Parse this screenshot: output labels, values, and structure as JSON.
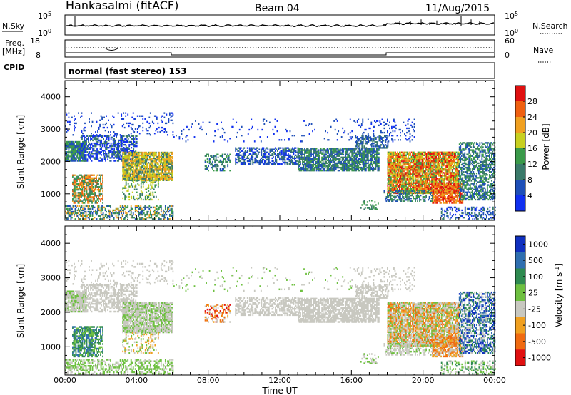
{
  "header": {
    "station": "Hankasalmi (fitACF)",
    "beam": "Beam 04",
    "date": "11/Aug/2015"
  },
  "side_labels": {
    "nsky": "N.Sky",
    "freq_line1": "Freq.",
    "freq_line2": "[MHz]",
    "cpid": "CPID",
    "nsearch": "N.Search",
    "nave": "Nave"
  },
  "noise_panel": {
    "left_ticks": [
      "10^5",
      "10^0"
    ],
    "right_ticks": [
      "10^5",
      "10^0"
    ]
  },
  "freq_panel": {
    "left_ticks": [
      "18",
      "8"
    ],
    "right_ticks": [
      "60",
      "0"
    ]
  },
  "cpid_text": "normal (fast stereo) 153",
  "chart_data": [
    {
      "type": "heatmap",
      "quantity": "Power",
      "ylabel": "Slant Range [km]",
      "xlabel": "Time UT",
      "ylim": [
        180,
        4500
      ],
      "xlim": [
        0,
        24
      ],
      "yticks": [
        1000,
        2000,
        3000,
        4000
      ],
      "xtick_labels": [
        "00:00",
        "04:00",
        "08:00",
        "12:00",
        "16:00",
        "20:00",
        "00:00"
      ],
      "colorbar": {
        "label": "Power [dB]",
        "ticks": [
          4,
          8,
          12,
          16,
          20,
          24,
          28
        ],
        "levels": [
          {
            "from": 0,
            "to": 4,
            "color": "#1030f0"
          },
          {
            "from": 4,
            "to": 8,
            "color": "#1e4fb8"
          },
          {
            "from": 8,
            "to": 12,
            "color": "#3a7a6a"
          },
          {
            "from": 12,
            "to": 16,
            "color": "#3a9a4a"
          },
          {
            "from": 16,
            "to": 20,
            "color": "#c8d020"
          },
          {
            "from": 20,
            "to": 24,
            "color": "#f0a020"
          },
          {
            "from": 24,
            "to": 28,
            "color": "#f06010"
          },
          {
            "from": 28,
            "to": 32,
            "color": "#e01010"
          }
        ]
      }
    },
    {
      "type": "heatmap",
      "quantity": "Velocity",
      "ylabel": "Slant Range [km]",
      "xlabel": "Time UT",
      "ylim": [
        180,
        4500
      ],
      "xlim": [
        0,
        24
      ],
      "yticks": [
        1000,
        2000,
        3000,
        4000
      ],
      "xtick_labels": [
        "00:00",
        "04:00",
        "08:00",
        "12:00",
        "16:00",
        "20:00",
        "00:00"
      ],
      "colorbar": {
        "label": "Velocity [m s",
        "label_sup": "-1",
        "label_tail": "]",
        "tick_labels": [
          "1000",
          "500",
          "100",
          "25",
          "-25",
          "-100",
          "-500",
          "-1000"
        ],
        "colors": [
          "#1030c0",
          "#2f6fb0",
          "#2e8a50",
          "#6ec040",
          "#c8c8c0",
          "#f0a020",
          "#f06a10",
          "#e01010"
        ]
      }
    }
  ]
}
